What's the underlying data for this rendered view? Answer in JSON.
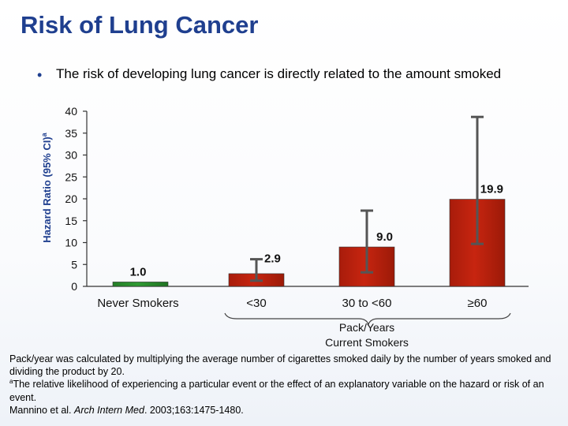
{
  "slide": {
    "title": "Risk of Lung Cancer",
    "bullet": "The risk of developing lung cancer is directly related to the amount smoked"
  },
  "footnotes": {
    "line1": "Pack/year was calculated by multiplying the average number of cigarettes smoked daily by the number of years smoked and dividing the product by 20.",
    "line2_marker": "a",
    "line2": "The relative likelihood of experiencing a particular event or the effect of an explanatory variable on the hazard or risk of an event.",
    "line3_prefix": "Mannino et al. ",
    "line3_journal": "Arch Intern Med",
    "line3_suffix": ". 2003;163:1475-1480."
  },
  "colors": {
    "title": "#1f3f8f",
    "never_smokers_bar": "#2f9a33",
    "smoker_bar": "#c72510",
    "error_bar": "#555555"
  },
  "chart_data": {
    "type": "bar",
    "categories": [
      "Never Smokers",
      "<30",
      "30 to <60",
      "≥60"
    ],
    "values": [
      1.0,
      2.9,
      9.0,
      19.9
    ],
    "value_labels": [
      "1.0",
      "2.9",
      "9.0",
      "19.9"
    ],
    "error_bars": [
      null,
      {
        "low": 1.3,
        "high": 6.2
      },
      {
        "low": 3.2,
        "high": 17.3
      },
      {
        "low": 9.7,
        "high": 38.7
      }
    ],
    "ylabel": "Hazard Ratio (95% CI)",
    "ylabel_superscript": "a",
    "xlabel_line1": "Pack/Years",
    "xlabel_line2": "Current Smokers",
    "ylim": [
      0,
      40
    ],
    "yticks": [
      0,
      5,
      10,
      15,
      20,
      25,
      30,
      35,
      40
    ]
  }
}
